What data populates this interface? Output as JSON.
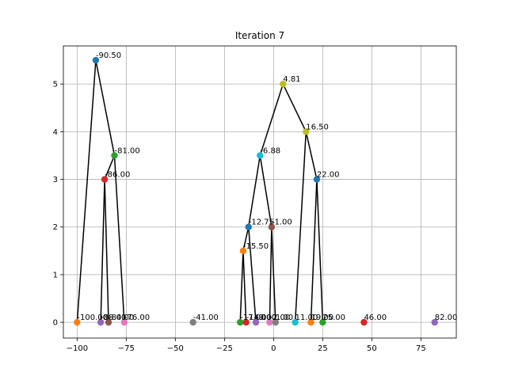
{
  "chart_data": {
    "type": "scatter",
    "title": "Iteration 7",
    "xlabel": "",
    "ylabel": "",
    "xlim": [
      -107,
      93
    ],
    "ylim": [
      -0.33,
      5.8
    ],
    "grid": true,
    "x_ticks": [
      -100,
      -75,
      -50,
      -25,
      0,
      25,
      50,
      75
    ],
    "x_tick_labels": [
      "−100",
      "−75",
      "−50",
      "−25",
      "0",
      "25",
      "50",
      "75"
    ],
    "y_ticks": [
      0,
      1,
      2,
      3,
      4,
      5
    ],
    "y_tick_labels": [
      "0",
      "1",
      "2",
      "3",
      "4",
      "5"
    ],
    "points": [
      {
        "id": "p1",
        "x": -100,
        "y": 0,
        "label": "-100.00",
        "color": "#ff7f0e"
      },
      {
        "id": "p2",
        "x": -88,
        "y": 0,
        "label": "-88.00",
        "color": "#9467bd"
      },
      {
        "id": "p3",
        "x": -84,
        "y": 0,
        "label": "-84.00",
        "color": "#8c564b"
      },
      {
        "id": "p4",
        "x": -76,
        "y": 0,
        "label": "-76.00",
        "color": "#e377c2"
      },
      {
        "id": "p5",
        "x": -41,
        "y": 0,
        "label": "-41.00",
        "color": "#7f7f7f"
      },
      {
        "id": "p6",
        "x": -17,
        "y": 0,
        "label": "-17.00",
        "color": "#2ca02c"
      },
      {
        "id": "p7",
        "x": -14,
        "y": 0,
        "label": "-14.00",
        "color": "#d62728"
      },
      {
        "id": "p8",
        "x": -9,
        "y": 0,
        "label": "-9.00",
        "color": "#9467bd"
      },
      {
        "id": "p9",
        "x": -2,
        "y": 0,
        "label": "-2.00",
        "color": "#e377c2"
      },
      {
        "id": "p10",
        "x": 1,
        "y": 0,
        "label": "1.00",
        "color": "#7f7f7f"
      },
      {
        "id": "p11",
        "x": 11,
        "y": 0,
        "label": "11.00",
        "color": "#17becf"
      },
      {
        "id": "p12",
        "x": 19,
        "y": 0,
        "label": "19.00",
        "color": "#ff7f0e"
      },
      {
        "id": "p13",
        "x": 25,
        "y": 0,
        "label": "25.00",
        "color": "#2ca02c"
      },
      {
        "id": "p14",
        "x": 46,
        "y": 0,
        "label": "46.00",
        "color": "#d62728"
      },
      {
        "id": "p15",
        "x": 82,
        "y": 0,
        "label": "82.00",
        "color": "#9467bd"
      },
      {
        "id": "p16",
        "x": -86,
        "y": 3,
        "label": "-86.00",
        "color": "#d62728"
      },
      {
        "id": "p17",
        "x": -81,
        "y": 3.5,
        "label": "-81.00",
        "color": "#2ca02c"
      },
      {
        "id": "p18",
        "x": -90.5,
        "y": 5.5,
        "label": "-90.50",
        "color": "#1f77b4"
      },
      {
        "id": "p19",
        "x": -15.5,
        "y": 1.5,
        "label": "-15.50",
        "color": "#ff7f0e"
      },
      {
        "id": "p20",
        "x": -12.75,
        "y": 2,
        "label": "-12.75",
        "color": "#1f77b4"
      },
      {
        "id": "p21",
        "x": -1,
        "y": 2,
        "label": "-1.00",
        "color": "#8c564b"
      },
      {
        "id": "p22",
        "x": -6.88,
        "y": 3.5,
        "label": "-6.88",
        "color": "#17becf"
      },
      {
        "id": "p23",
        "x": 22,
        "y": 3,
        "label": "22.00",
        "color": "#1f77b4"
      },
      {
        "id": "p24",
        "x": 16.5,
        "y": 4,
        "label": "16.50",
        "color": "#bcbd22"
      },
      {
        "id": "p25",
        "x": 4.81,
        "y": 5,
        "label": "4.81",
        "color": "#bcbd22"
      }
    ],
    "edges": [
      [
        "p18",
        "p1"
      ],
      [
        "p18",
        "p17"
      ],
      [
        "p17",
        "p16"
      ],
      [
        "p17",
        "p4"
      ],
      [
        "p16",
        "p2"
      ],
      [
        "p16",
        "p3"
      ],
      [
        "p25",
        "p22"
      ],
      [
        "p25",
        "p24"
      ],
      [
        "p22",
        "p20"
      ],
      [
        "p22",
        "p21"
      ],
      [
        "p20",
        "p19"
      ],
      [
        "p20",
        "p8"
      ],
      [
        "p19",
        "p6"
      ],
      [
        "p19",
        "p7"
      ],
      [
        "p21",
        "p9"
      ],
      [
        "p21",
        "p10"
      ],
      [
        "p24",
        "p11"
      ],
      [
        "p24",
        "p23"
      ],
      [
        "p23",
        "p12"
      ],
      [
        "p23",
        "p13"
      ]
    ]
  }
}
